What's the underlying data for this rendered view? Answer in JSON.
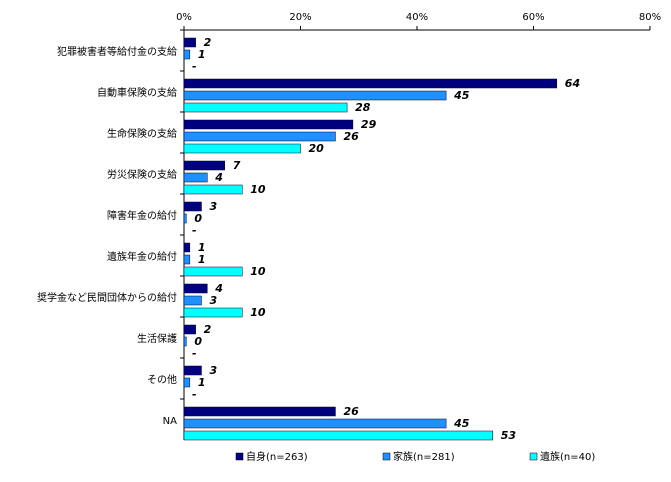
{
  "chart_data": {
    "type": "hbar",
    "categories": [
      "犯罪被害者等給付金の支給",
      "自動車保険の支給",
      "生命保険の支給",
      "労災保険の支給",
      "障害年金の給付",
      "遺族年金の給付",
      "奨学金など民間団体からの給付",
      "生活保護",
      "その他",
      "NA"
    ],
    "series": [
      {
        "name": "自身(n=263)",
        "color": "#000080",
        "values": [
          2,
          64,
          29,
          7,
          3,
          1,
          4,
          2,
          3,
          26
        ],
        "value_labels": [
          "2",
          "64",
          "29",
          "7",
          "3",
          "1",
          "4",
          "2",
          "3",
          "26"
        ]
      },
      {
        "name": "家族(n=281)",
        "color": "#1e90ff",
        "values": [
          1,
          45,
          26,
          4,
          0.4,
          1,
          3,
          0.4,
          1,
          45
        ],
        "value_labels": [
          "1",
          "45",
          "26",
          "4",
          "0",
          "1",
          "3",
          "0",
          "1",
          "45"
        ]
      },
      {
        "name": "遺族(n=40)",
        "color": "#00ffff",
        "values": [
          0,
          28,
          20,
          10,
          0,
          10,
          10,
          0,
          0,
          53
        ],
        "value_labels": [
          "-",
          "28",
          "20",
          "10",
          "-",
          "10",
          "10",
          "-",
          "-",
          "53"
        ]
      }
    ],
    "xlim": [
      0,
      80
    ],
    "xticks": [
      {
        "value": 0,
        "label": "0%"
      },
      {
        "value": 20,
        "label": "20%"
      },
      {
        "value": 40,
        "label": "40%"
      },
      {
        "value": 60,
        "label": "60%"
      },
      {
        "value": 80,
        "label": "80%"
      }
    ],
    "legend": "bottom"
  }
}
